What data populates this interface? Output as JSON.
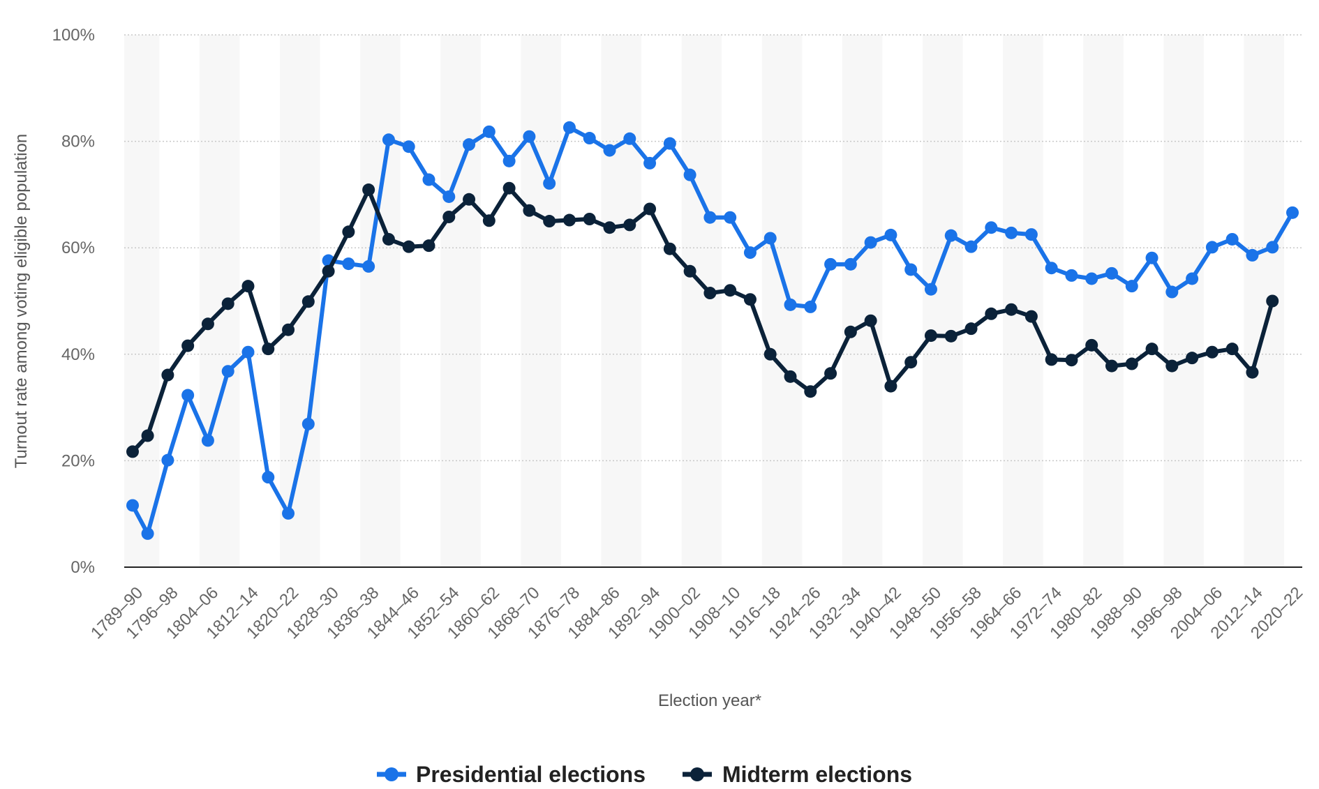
{
  "chart_data": {
    "type": "line",
    "title": "",
    "xlabel": "Election year*",
    "ylabel": "Turnout rate among voting eligible population",
    "ylim": [
      0,
      100
    ],
    "yticks": [
      0,
      20,
      40,
      60,
      80,
      100
    ],
    "ytick_labels": [
      "0%",
      "20%",
      "40%",
      "60%",
      "80%",
      "100%"
    ],
    "grid": true,
    "legend_position": "bottom-center",
    "x_tick_labels": [
      "1789–90",
      "1796–98",
      "1804–06",
      "1812–14",
      "1820–22",
      "1828–30",
      "1836–38",
      "1844–46",
      "1852–54",
      "1860–62",
      "1868–70",
      "1876–78",
      "1884–86",
      "1892–94",
      "1900–02",
      "1908–10",
      "1916–18",
      "1924–26",
      "1932–34",
      "1940–42",
      "1948–50",
      "1956–58",
      "1964–66",
      "1972–74",
      "1980–82",
      "1988–90",
      "1996–98",
      "2004–06",
      "2012–14",
      "2020–22"
    ],
    "x_tick_years": [
      1789,
      1796,
      1804,
      1812,
      1820,
      1828,
      1836,
      1844,
      1852,
      1860,
      1868,
      1876,
      1884,
      1892,
      1900,
      1908,
      1916,
      1924,
      1932,
      1940,
      1948,
      1956,
      1964,
      1972,
      1980,
      1988,
      1996,
      2004,
      2012,
      2020
    ],
    "series": [
      {
        "name": "Presidential elections",
        "color": "#1a73e8",
        "points": [
          {
            "x": 1789,
            "y": 11.6
          },
          {
            "x": 1792,
            "y": 6.3
          },
          {
            "x": 1796,
            "y": 20.1
          },
          {
            "x": 1800,
            "y": 32.3
          },
          {
            "x": 1804,
            "y": 23.8
          },
          {
            "x": 1808,
            "y": 36.8
          },
          {
            "x": 1812,
            "y": 40.4
          },
          {
            "x": 1816,
            "y": 16.9
          },
          {
            "x": 1820,
            "y": 10.1
          },
          {
            "x": 1824,
            "y": 26.9
          },
          {
            "x": 1828,
            "y": 57.6
          },
          {
            "x": 1832,
            "y": 57.0
          },
          {
            "x": 1836,
            "y": 56.5
          },
          {
            "x": 1840,
            "y": 80.3
          },
          {
            "x": 1844,
            "y": 79.0
          },
          {
            "x": 1848,
            "y": 72.8
          },
          {
            "x": 1852,
            "y": 69.6
          },
          {
            "x": 1856,
            "y": 79.4
          },
          {
            "x": 1860,
            "y": 81.8
          },
          {
            "x": 1864,
            "y": 76.3
          },
          {
            "x": 1868,
            "y": 80.9
          },
          {
            "x": 1872,
            "y": 72.1
          },
          {
            "x": 1876,
            "y": 82.6
          },
          {
            "x": 1880,
            "y": 80.6
          },
          {
            "x": 1884,
            "y": 78.3
          },
          {
            "x": 1888,
            "y": 80.5
          },
          {
            "x": 1892,
            "y": 75.9
          },
          {
            "x": 1896,
            "y": 79.6
          },
          {
            "x": 1900,
            "y": 73.7
          },
          {
            "x": 1904,
            "y": 65.7
          },
          {
            "x": 1908,
            "y": 65.7
          },
          {
            "x": 1912,
            "y": 59.1
          },
          {
            "x": 1916,
            "y": 61.8
          },
          {
            "x": 1920,
            "y": 49.3
          },
          {
            "x": 1924,
            "y": 48.9
          },
          {
            "x": 1928,
            "y": 56.9
          },
          {
            "x": 1932,
            "y": 56.9
          },
          {
            "x": 1936,
            "y": 61.0
          },
          {
            "x": 1940,
            "y": 62.4
          },
          {
            "x": 1944,
            "y": 55.9
          },
          {
            "x": 1948,
            "y": 52.2
          },
          {
            "x": 1952,
            "y": 62.3
          },
          {
            "x": 1956,
            "y": 60.2
          },
          {
            "x": 1960,
            "y": 63.8
          },
          {
            "x": 1964,
            "y": 62.8
          },
          {
            "x": 1968,
            "y": 62.5
          },
          {
            "x": 1972,
            "y": 56.2
          },
          {
            "x": 1976,
            "y": 54.8
          },
          {
            "x": 1980,
            "y": 54.2
          },
          {
            "x": 1984,
            "y": 55.2
          },
          {
            "x": 1988,
            "y": 52.8
          },
          {
            "x": 1992,
            "y": 58.1
          },
          {
            "x": 1996,
            "y": 51.7
          },
          {
            "x": 2000,
            "y": 54.2
          },
          {
            "x": 2004,
            "y": 60.1
          },
          {
            "x": 2008,
            "y": 61.6
          },
          {
            "x": 2012,
            "y": 58.6
          },
          {
            "x": 2016,
            "y": 60.1
          },
          {
            "x": 2020,
            "y": 66.6
          }
        ]
      },
      {
        "name": "Midterm elections",
        "color": "#0b2239",
        "points": [
          {
            "x": 1789,
            "y": 21.7
          },
          {
            "x": 1792,
            "y": 24.7
          },
          {
            "x": 1796,
            "y": 36.1
          },
          {
            "x": 1800,
            "y": 41.6
          },
          {
            "x": 1804,
            "y": 45.7
          },
          {
            "x": 1808,
            "y": 49.5
          },
          {
            "x": 1812,
            "y": 52.8
          },
          {
            "x": 1816,
            "y": 41.0
          },
          {
            "x": 1820,
            "y": 44.6
          },
          {
            "x": 1824,
            "y": 49.9
          },
          {
            "x": 1828,
            "y": 55.6
          },
          {
            "x": 1832,
            "y": 63.0
          },
          {
            "x": 1836,
            "y": 70.9
          },
          {
            "x": 1840,
            "y": 61.6
          },
          {
            "x": 1844,
            "y": 60.2
          },
          {
            "x": 1848,
            "y": 60.4
          },
          {
            "x": 1852,
            "y": 65.8
          },
          {
            "x": 1856,
            "y": 69.1
          },
          {
            "x": 1860,
            "y": 65.1
          },
          {
            "x": 1864,
            "y": 71.2
          },
          {
            "x": 1868,
            "y": 67.0
          },
          {
            "x": 1872,
            "y": 65.0
          },
          {
            "x": 1876,
            "y": 65.2
          },
          {
            "x": 1880,
            "y": 65.4
          },
          {
            "x": 1884,
            "y": 63.8
          },
          {
            "x": 1888,
            "y": 64.3
          },
          {
            "x": 1892,
            "y": 67.3
          },
          {
            "x": 1896,
            "y": 59.8
          },
          {
            "x": 1900,
            "y": 55.6
          },
          {
            "x": 1904,
            "y": 51.5
          },
          {
            "x": 1908,
            "y": 52.0
          },
          {
            "x": 1912,
            "y": 50.3
          },
          {
            "x": 1916,
            "y": 40.0
          },
          {
            "x": 1920,
            "y": 35.8
          },
          {
            "x": 1924,
            "y": 33.0
          },
          {
            "x": 1928,
            "y": 36.4
          },
          {
            "x": 1932,
            "y": 44.2
          },
          {
            "x": 1936,
            "y": 46.3
          },
          {
            "x": 1940,
            "y": 34.0
          },
          {
            "x": 1944,
            "y": 38.5
          },
          {
            "x": 1948,
            "y": 43.5
          },
          {
            "x": 1952,
            "y": 43.4
          },
          {
            "x": 1956,
            "y": 44.8
          },
          {
            "x": 1960,
            "y": 47.6
          },
          {
            "x": 1964,
            "y": 48.4
          },
          {
            "x": 1968,
            "y": 47.1
          },
          {
            "x": 1972,
            "y": 39.0
          },
          {
            "x": 1976,
            "y": 38.9
          },
          {
            "x": 1980,
            "y": 41.7
          },
          {
            "x": 1984,
            "y": 37.8
          },
          {
            "x": 1988,
            "y": 38.2
          },
          {
            "x": 1992,
            "y": 41.0
          },
          {
            "x": 1996,
            "y": 37.8
          },
          {
            "x": 2000,
            "y": 39.3
          },
          {
            "x": 2004,
            "y": 40.4
          },
          {
            "x": 2008,
            "y": 41.0
          },
          {
            "x": 2012,
            "y": 36.6
          },
          {
            "x": 2016,
            "y": 50.0
          }
        ]
      }
    ]
  }
}
